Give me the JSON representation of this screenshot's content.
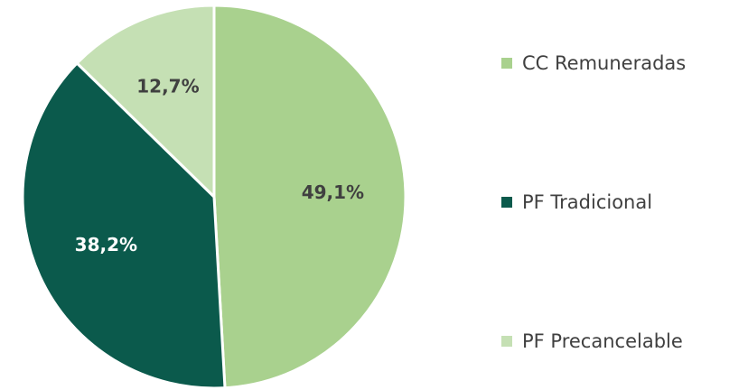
{
  "chart_data": {
    "type": "pie",
    "categories": [
      "CC Remuneradas",
      "PF Tradicional",
      "PF Precancelable"
    ],
    "values": [
      49.1,
      38.2,
      12.7
    ],
    "value_labels": [
      "49,1%",
      "38,2%",
      "12,7%"
    ],
    "colors": [
      "#a9d18e",
      "#0b5a4c",
      "#c5e0b4"
    ],
    "legend": "right"
  }
}
